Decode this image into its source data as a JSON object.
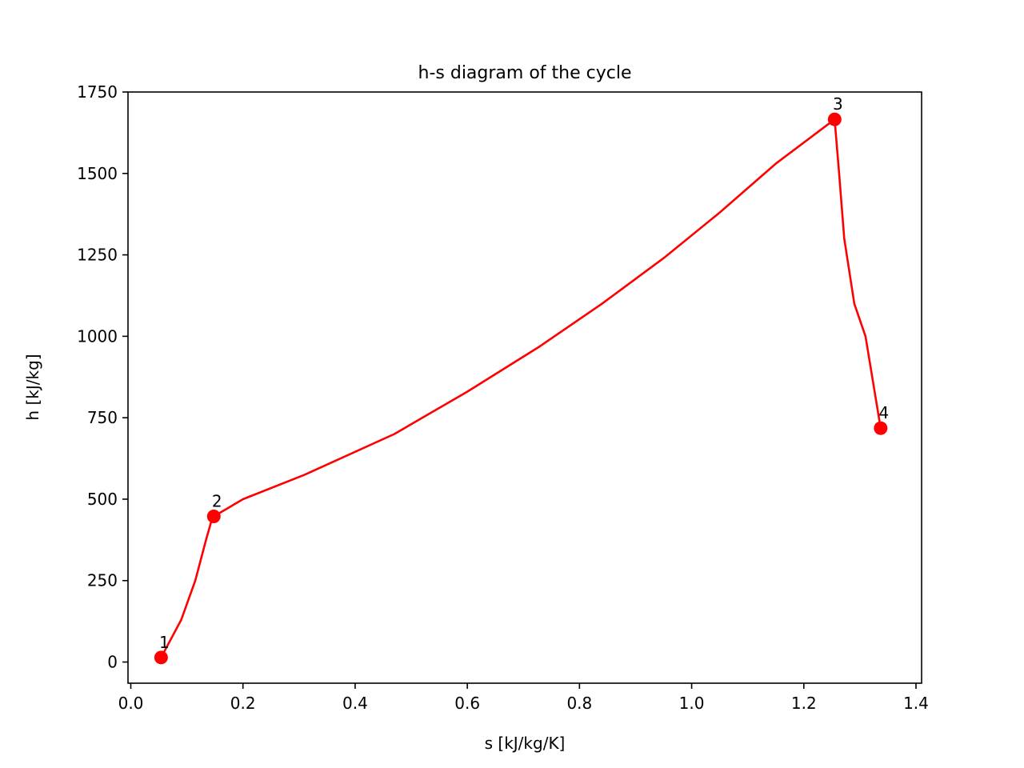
{
  "chart_data": {
    "type": "line",
    "title": "h-s diagram of the cycle",
    "xlabel": "s [kJ/kg/K]",
    "ylabel": "h [kJ/kg]",
    "xlim": [
      -0.005,
      1.41
    ],
    "ylim": [
      -65,
      1750
    ],
    "xticks": [
      0.0,
      0.2,
      0.4,
      0.6,
      0.8,
      1.0,
      1.2,
      1.4
    ],
    "xtick_labels": [
      "0.0",
      "0.2",
      "0.4",
      "0.6",
      "0.8",
      "1.0",
      "1.2",
      "1.4"
    ],
    "yticks": [
      0,
      250,
      500,
      750,
      1000,
      1250,
      1500,
      1750
    ],
    "ytick_labels": [
      "0",
      "250",
      "500",
      "750",
      "1000",
      "1250",
      "1500",
      "1750"
    ],
    "grid": false,
    "color": "#ff0000",
    "series": [
      {
        "x": [
          0.054,
          0.09,
          0.115,
          0.135,
          0.146,
          0.148,
          0.2,
          0.31,
          0.47,
          0.6,
          0.73,
          0.84,
          0.95,
          1.05,
          1.15,
          1.255,
          1.263,
          1.272,
          1.29,
          1.31,
          1.337
        ],
        "y": [
          14,
          130,
          250,
          380,
          447,
          447,
          500,
          575,
          700,
          830,
          970,
          1100,
          1240,
          1380,
          1530,
          1666,
          1500,
          1300,
          1100,
          1000,
          718
        ]
      }
    ],
    "points": [
      {
        "label": "1",
        "x": 0.054,
        "y": 14
      },
      {
        "label": "2",
        "x": 0.148,
        "y": 447
      },
      {
        "label": "3",
        "x": 1.255,
        "y": 1666
      },
      {
        "label": "4",
        "x": 1.337,
        "y": 718
      }
    ]
  }
}
